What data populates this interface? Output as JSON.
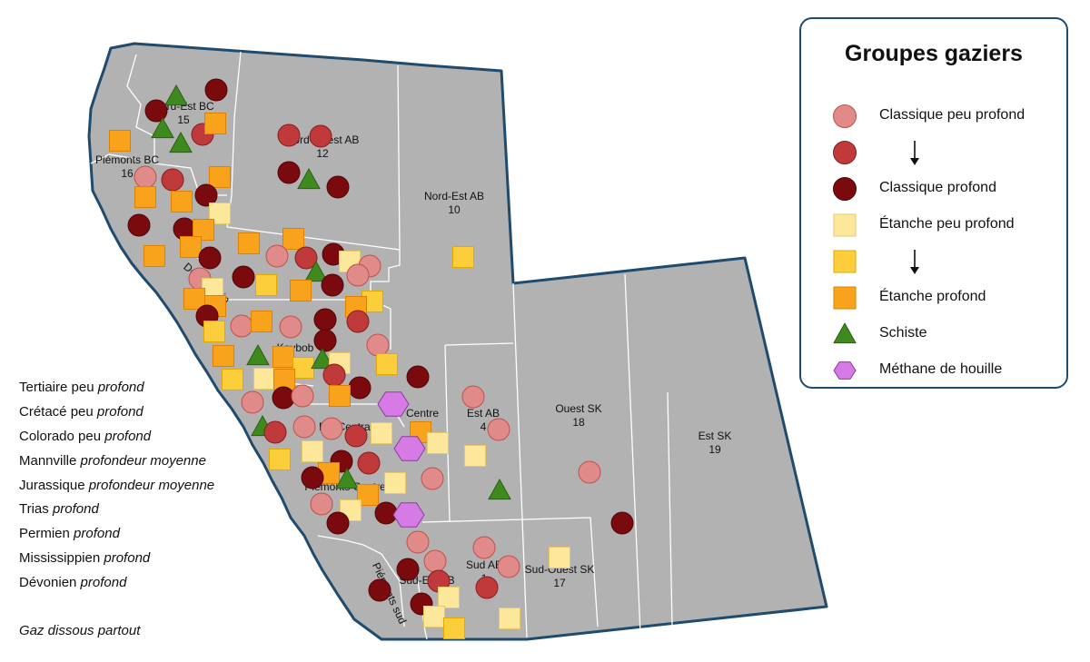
{
  "legend": {
    "title": "Groupes gaziers",
    "items": [
      {
        "shape": "circle",
        "color": "#e08a8a",
        "stroke": "#c0504d",
        "label": "Classique peu profond"
      },
      {
        "shape": "circle",
        "color": "#c0393b",
        "stroke": "#8a1c1e",
        "label": ""
      },
      {
        "shape": "circle",
        "color": "#7a0a0e",
        "stroke": "#50060a",
        "label": "Classique profond"
      },
      {
        "shape": "square",
        "color": "#fde79a",
        "stroke": "#e5c86a",
        "label": "Étanche peu profond"
      },
      {
        "shape": "square",
        "color": "#fcce3c",
        "stroke": "#e0a800",
        "label": ""
      },
      {
        "shape": "square",
        "color": "#f9a21c",
        "stroke": "#e08000",
        "label": "Étanche profond"
      },
      {
        "shape": "triangle",
        "color": "#3f8a1f",
        "stroke": "#2a6010",
        "label": "Schiste"
      },
      {
        "shape": "hexagon",
        "color": "#d67be6",
        "stroke": "#8a3aa0",
        "label": "Méthane de houille"
      }
    ]
  },
  "notes": [
    {
      "plain": "Tertiaire peu ",
      "italic": "profond"
    },
    {
      "plain": "Crétacé peu ",
      "italic": "profond"
    },
    {
      "plain": "Colorado peu ",
      "italic": "profond"
    },
    {
      "plain": "Mannville ",
      "italic": "profondeur moyenne"
    },
    {
      "plain": "Jurassique ",
      "italic": "profondeur moyenne"
    },
    {
      "plain": "Trias ",
      "italic": "profond"
    },
    {
      "plain": "Permien ",
      "italic": "profond"
    },
    {
      "plain": "Mississippien ",
      "italic": "profond"
    },
    {
      "plain": "Dévonien ",
      "italic": "profond"
    }
  ],
  "footnote": "Gaz dissous partout",
  "map": {
    "colors": {
      "land": "#b2b2b2",
      "border": "#1f4b6e",
      "inner_border": "#ffffff"
    },
    "regions": [
      {
        "name": "Nord-Ouest AB",
        "number": "12"
      },
      {
        "name": "Nord-Est AB",
        "number": "10"
      },
      {
        "name": "Nord-Est BC",
        "number": "15"
      },
      {
        "name": "Piémonts BC",
        "number": "16"
      },
      {
        "name": "Ouest SK",
        "number": "18"
      },
      {
        "name": "Est SK",
        "number": "19"
      },
      {
        "name": "Est AB",
        "number": "4"
      },
      {
        "name": "Centre",
        "number": ""
      },
      {
        "name": "Sud AB",
        "number": "1"
      },
      {
        "name": "Sud-Ouest SK",
        "number": "17"
      },
      {
        "name": "Sud-Est AB",
        "number": ""
      },
      {
        "name": "Kaybob",
        "number": ""
      },
      {
        "name": "Est Central AB",
        "number": "6"
      },
      {
        "name": "Piémonts Centre",
        "number": ""
      },
      {
        "name": "Piémonts sud",
        "number": ""
      },
      {
        "name": "Deep Basin",
        "number": "13"
      }
    ]
  }
}
